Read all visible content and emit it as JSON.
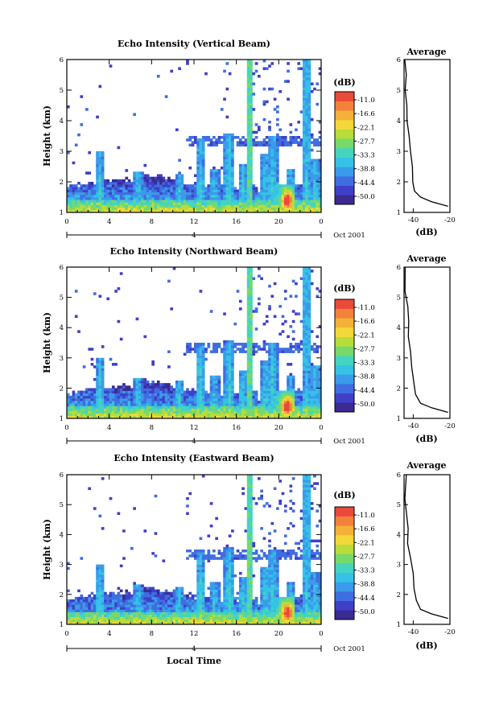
{
  "chart_data": [
    {
      "type": "heatmap",
      "title": "Echo Intensity (Vertical Beam)",
      "ylabel": "Height (km)",
      "xticks": [
        "0",
        "4",
        "8",
        "12",
        "16",
        "20",
        "0"
      ],
      "yticks": [
        "1",
        "2",
        "3",
        "4",
        "5",
        "6"
      ],
      "ylim": [
        1,
        6
      ],
      "date_marker": "4",
      "date_label": "Oct 2001",
      "colorbar": {
        "unit": "(dB)",
        "ticks": [
          "-11.0",
          "-16.6",
          "-22.1",
          "-27.7",
          "-33.3",
          "-38.8",
          "-44.4",
          "-50.0"
        ]
      },
      "average_profile": {
        "title": "Average",
        "xlabel": "(dB)",
        "xticks": [
          "-40",
          "-20"
        ],
        "yticks": [
          "1",
          "2",
          "3",
          "4",
          "5",
          "6"
        ],
        "xlim": [
          -45,
          -20
        ],
        "ylim": [
          1,
          6
        ],
        "points": [
          [
            -21,
            1.2
          ],
          [
            -30,
            1.35
          ],
          [
            -36,
            1.5
          ],
          [
            -39,
            1.7
          ],
          [
            -40,
            2.0
          ],
          [
            -40.5,
            2.5
          ],
          [
            -41.5,
            3.0
          ],
          [
            -42.5,
            3.5
          ],
          [
            -43,
            4.0
          ],
          [
            -43.5,
            4.5
          ],
          [
            -44,
            5.0
          ],
          [
            -44,
            5.5
          ],
          [
            -44,
            6.0
          ]
        ]
      }
    },
    {
      "type": "heatmap",
      "title": "Echo Intensity (Northward Beam)",
      "ylabel": "Height (km)",
      "xticks": [
        "0",
        "4",
        "8",
        "12",
        "16",
        "20",
        "0"
      ],
      "yticks": [
        "1",
        "2",
        "3",
        "4",
        "5",
        "6"
      ],
      "ylim": [
        1,
        6
      ],
      "date_marker": "4",
      "date_label": "Oct 2001",
      "colorbar": {
        "unit": "(dB)",
        "ticks": [
          "-11.0",
          "-16.6",
          "-22.1",
          "-27.7",
          "-33.3",
          "-38.8",
          "-44.4",
          "-50.0"
        ]
      },
      "average_profile": {
        "title": "Average",
        "xlabel": "(dB)",
        "xticks": [
          "-40",
          "-20"
        ],
        "yticks": [
          "1",
          "2",
          "3",
          "4",
          "5",
          "6"
        ],
        "xlim": [
          -45,
          -20
        ],
        "ylim": [
          1,
          6
        ],
        "points": [
          [
            -21,
            1.2
          ],
          [
            -30,
            1.35
          ],
          [
            -36,
            1.5
          ],
          [
            -38.5,
            1.8
          ],
          [
            -39.5,
            2.2
          ],
          [
            -40.5,
            2.7
          ],
          [
            -41.5,
            3.2
          ],
          [
            -42.5,
            3.7
          ],
          [
            -43,
            4.2
          ],
          [
            -43.5,
            4.7
          ],
          [
            -44,
            5.2
          ],
          [
            -44,
            6.0
          ]
        ]
      }
    },
    {
      "type": "heatmap",
      "title": "Echo Intensity (Eastward Beam)",
      "ylabel": "Height (km)",
      "xlabel": "Local Time",
      "xticks": [
        "0",
        "4",
        "8",
        "12",
        "16",
        "20",
        "0"
      ],
      "yticks": [
        "1",
        "2",
        "3",
        "4",
        "5",
        "6"
      ],
      "ylim": [
        1,
        6
      ],
      "date_marker": "4",
      "date_label": "Oct 2001",
      "colorbar": {
        "unit": "(dB)",
        "ticks": [
          "-11.0",
          "-16.6",
          "-22.1",
          "-27.7",
          "-33.3",
          "-38.8",
          "-44.4",
          "-50.0"
        ]
      },
      "average_profile": {
        "title": "Average",
        "xlabel": "(dB)",
        "xticks": [
          "-40",
          "-20"
        ],
        "yticks": [
          "1",
          "2",
          "3",
          "4",
          "5",
          "6"
        ],
        "xlim": [
          -45,
          -20
        ],
        "ylim": [
          1,
          6
        ],
        "points": [
          [
            -21,
            1.2
          ],
          [
            -30,
            1.35
          ],
          [
            -36,
            1.5
          ],
          [
            -38,
            1.8
          ],
          [
            -39.5,
            2.2
          ],
          [
            -40.5,
            2.7
          ],
          [
            -41.5,
            3.2
          ],
          [
            -42.5,
            3.7
          ],
          [
            -43,
            4.2
          ],
          [
            -43.5,
            4.7
          ],
          [
            -44,
            5.2
          ],
          [
            -44,
            6.0
          ]
        ]
      }
    }
  ],
  "colors": {
    "scale": [
      "#3b2a8f",
      "#3f3fc8",
      "#3f6ee0",
      "#3a9bea",
      "#35c2e6",
      "#44d4c0",
      "#77d96a",
      "#b8dc3a",
      "#f2d83a",
      "#f5b03a",
      "#f2823a",
      "#e94a3a"
    ]
  }
}
